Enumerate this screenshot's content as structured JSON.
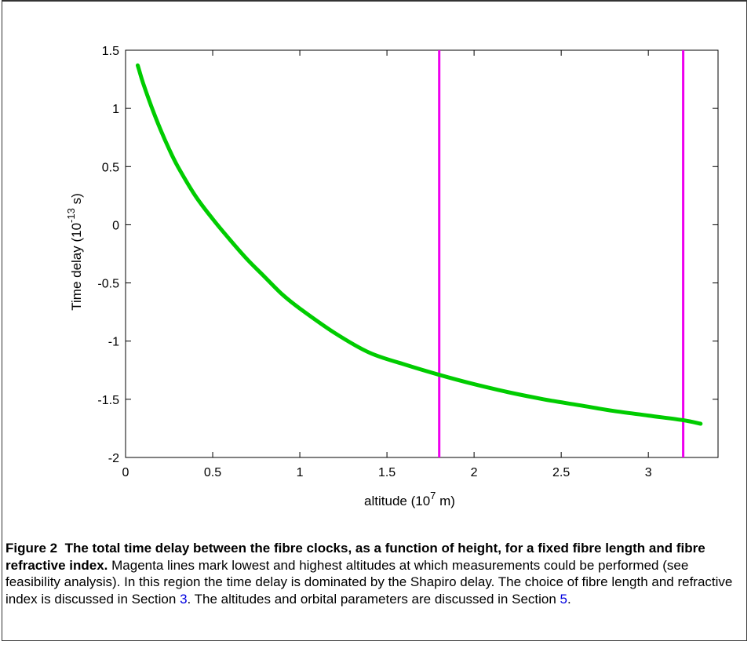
{
  "figure": {
    "label": "Figure 2",
    "title": "The total time delay between the fibre clocks, as a function of height, for a fixed fibre length and fibre refractive index.",
    "body_1": " Magenta lines mark lowest and highest altitudes at which measurements could be performed (see feasibility analysis). In this region the time delay is dominated by the Shapiro delay. The choice of fibre length and refractive index is discussed in Section ",
    "ref_1": "3",
    "body_2": ". The altitudes and orbital parameters are discussed in Section ",
    "ref_2": "5",
    "body_3": "."
  },
  "chart_data": {
    "type": "line",
    "xlabel_base": "altitude (10",
    "xlabel_exp": "7",
    "xlabel_unit": " m)",
    "ylabel_base": "Time delay (10",
    "ylabel_exp": "-13",
    "ylabel_unit": " s)",
    "xlim": [
      0,
      3.4
    ],
    "ylim": [
      -2,
      1.5
    ],
    "xticks": [
      0,
      0.5,
      1,
      1.5,
      2,
      2.5,
      3
    ],
    "xtick_labels": [
      "0",
      "0.5",
      "1",
      "1.5",
      "2",
      "2.5",
      "3"
    ],
    "yticks": [
      -2,
      -1.5,
      -1,
      -0.5,
      0,
      0.5,
      1,
      1.5
    ],
    "ytick_labels": [
      "-2",
      "-1.5",
      "-1",
      "-0.5",
      "0",
      "0.5",
      "1",
      "1.5"
    ],
    "grid": false,
    "series": [
      {
        "color": "#00cc00",
        "x": [
          0.07,
          0.1,
          0.15,
          0.2,
          0.25,
          0.3,
          0.4,
          0.5,
          0.6,
          0.7,
          0.8,
          0.9,
          1.0,
          1.2,
          1.4,
          1.6,
          1.8,
          2.0,
          2.2,
          2.4,
          2.6,
          2.8,
          3.0,
          3.2,
          3.3
        ],
        "y": [
          1.37,
          1.22,
          1.01,
          0.82,
          0.65,
          0.5,
          0.25,
          0.05,
          -0.13,
          -0.3,
          -0.45,
          -0.6,
          -0.72,
          -0.93,
          -1.1,
          -1.2,
          -1.29,
          -1.37,
          -1.44,
          -1.5,
          -1.55,
          -1.6,
          -1.64,
          -1.68,
          -1.71
        ]
      }
    ],
    "vlines": [
      {
        "x": 1.8,
        "color": "#ee00ee"
      },
      {
        "x": 3.2,
        "color": "#ee00ee"
      }
    ]
  }
}
